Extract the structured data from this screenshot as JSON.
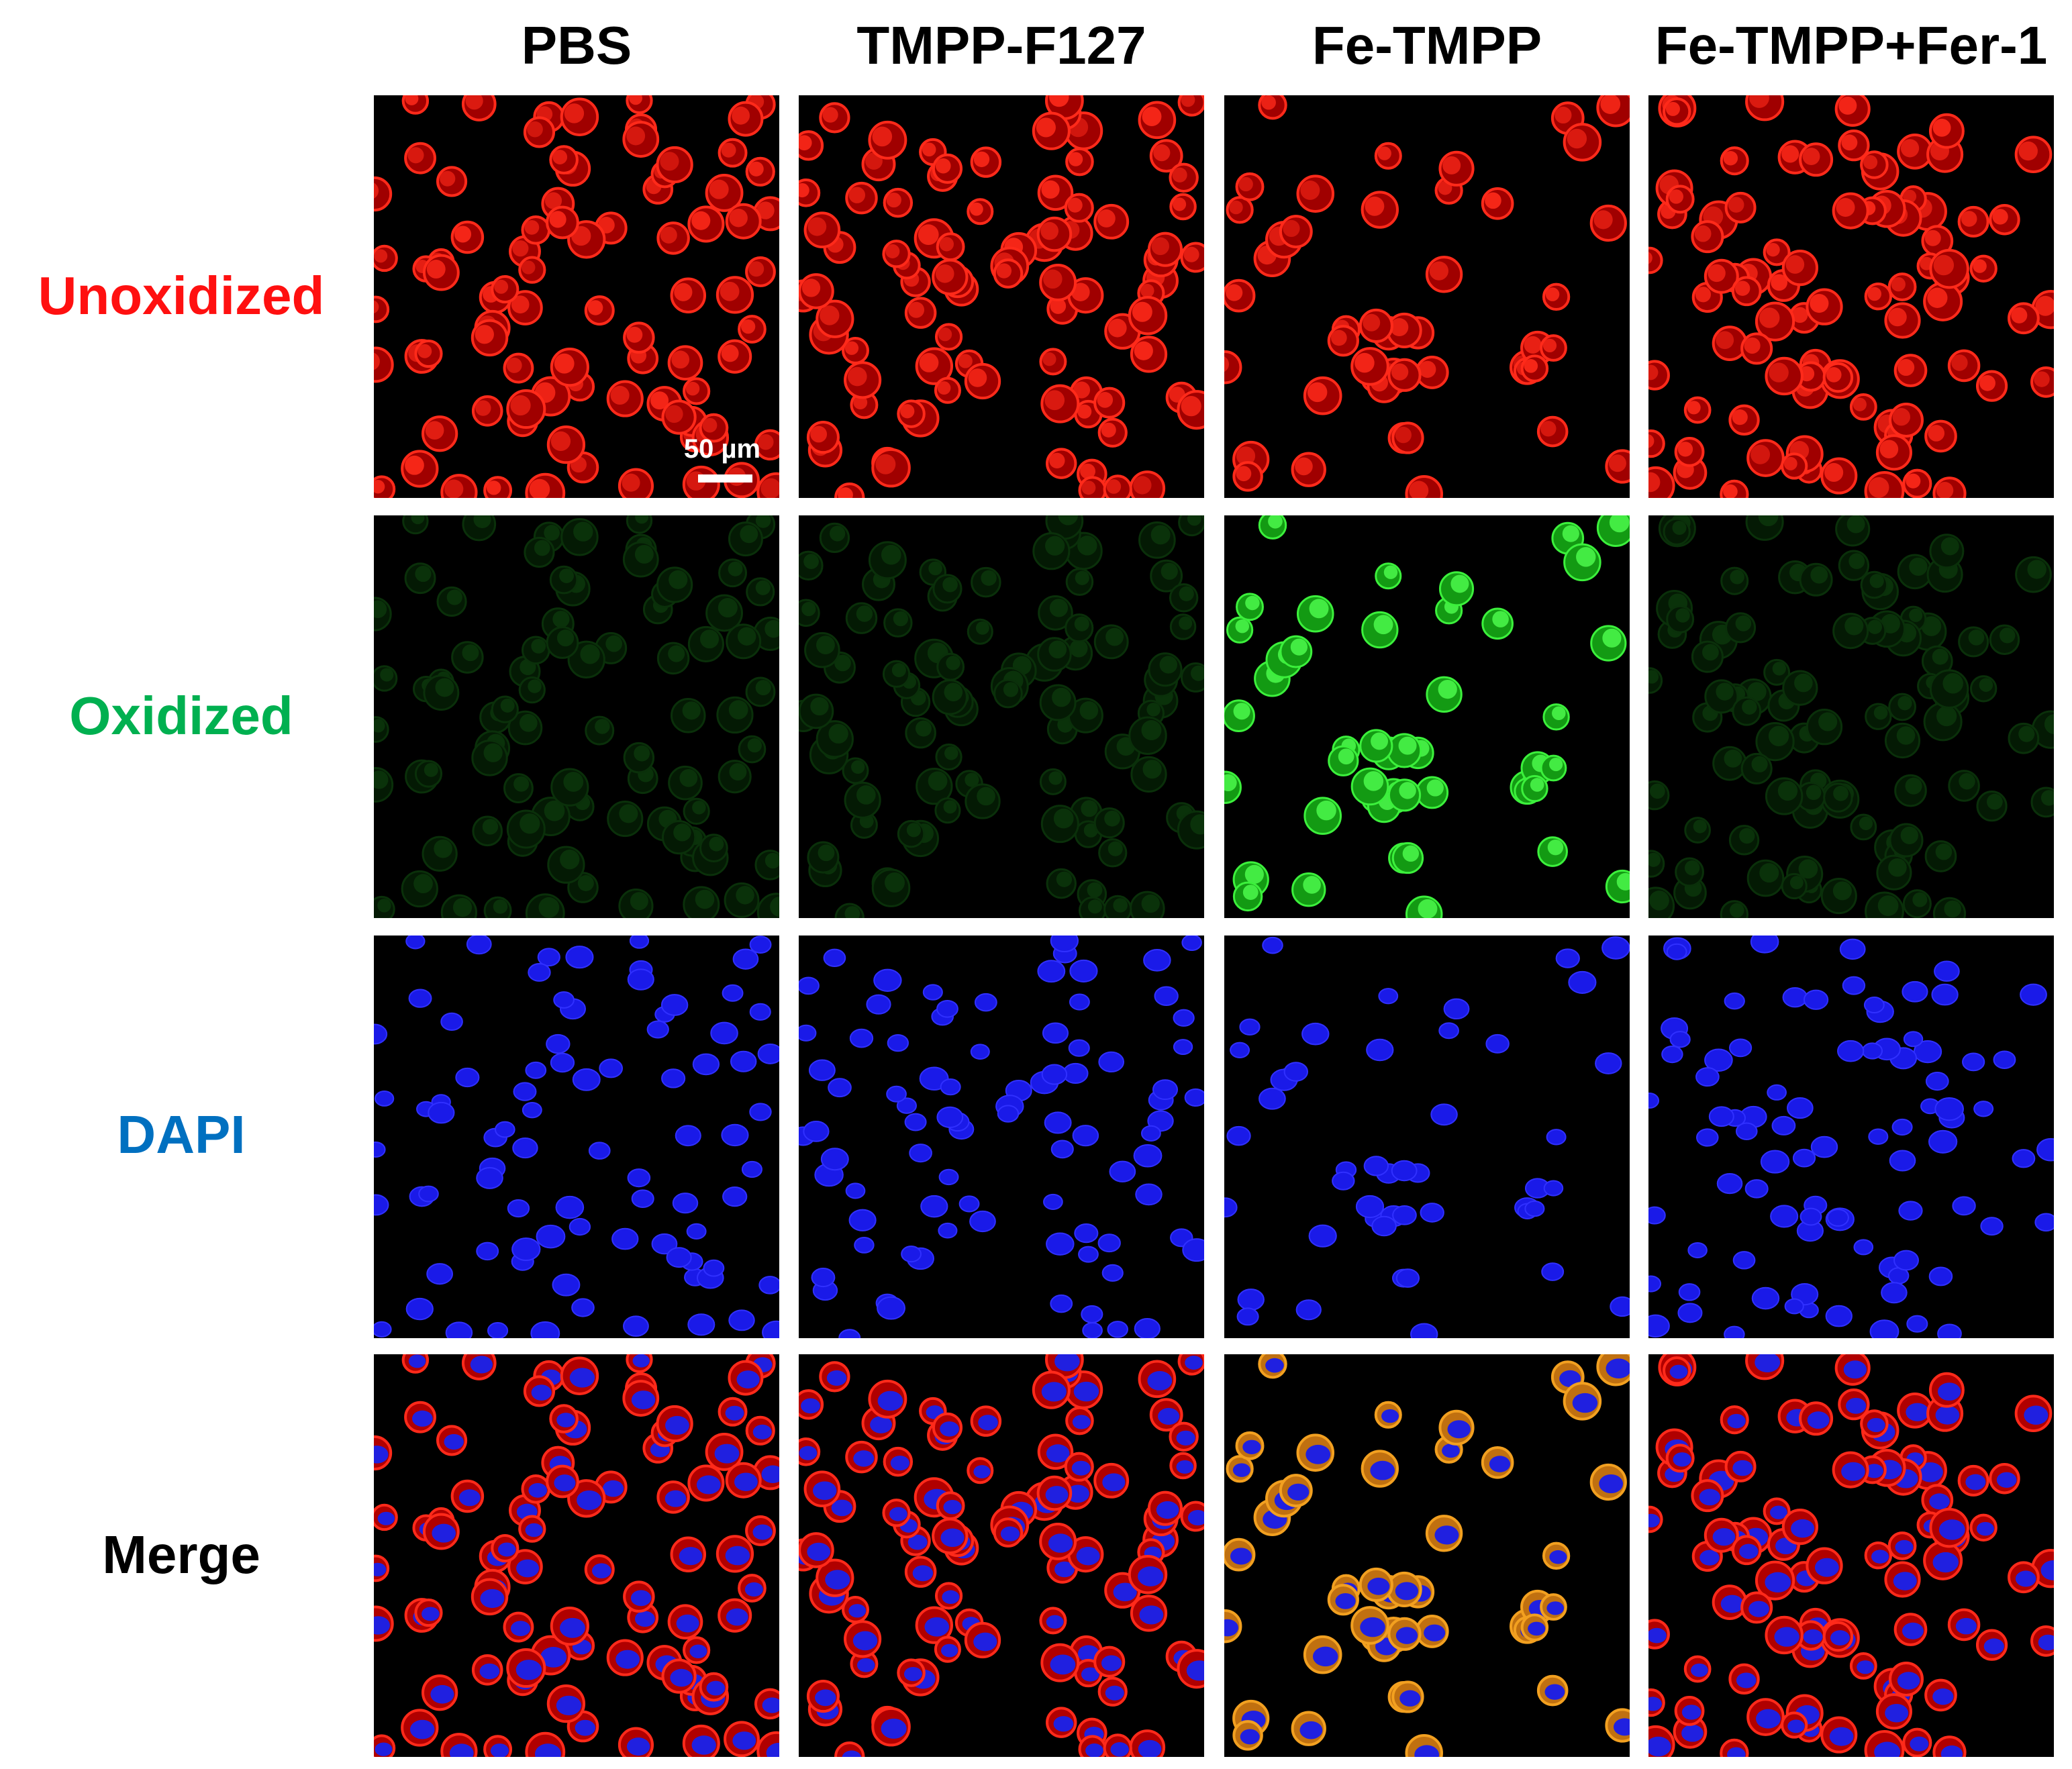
{
  "column_headers": [
    "PBS",
    "TMPP-F127",
    "Fe-TMPP",
    "Fe-TMPP+Fer-1"
  ],
  "row_labels": [
    "Unoxidized",
    "Oxidized",
    "DAPI",
    "Merge"
  ],
  "scale_bar": "50 µm"
}
